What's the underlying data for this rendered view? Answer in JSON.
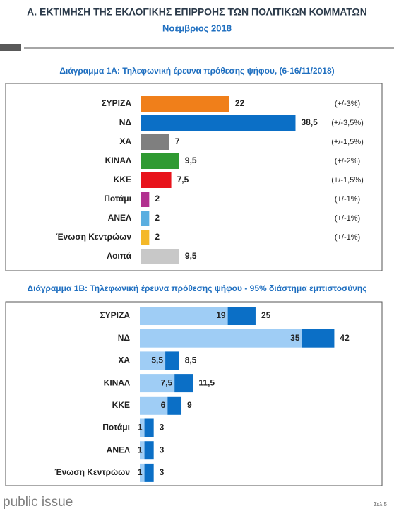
{
  "header": {
    "title": "Α. ΕΚΤΙΜΗΣΗ ΤΗΣ ΕΚΛΟΓΙΚΗΣ ΕΠΙΡΡΟΗΣ ΤΩΝ ΠΟΛΙΤΙΚΩΝ ΚΟΜΜΑΤΩΝ",
    "subtitle": "Νοέμβριος 2018"
  },
  "chart_data": [
    {
      "type": "bar",
      "title": "Διάγραμμα 1Α: Τηλεφωνική έρευνα πρόθεσης ψήφου,  (6-16/11/2018)",
      "categories": [
        "ΣΥΡΙΖΑ",
        "ΝΔ",
        "ΧΑ",
        "ΚΙΝΑΛ",
        "ΚΚΕ",
        "Ποτάμι",
        "ΑΝΕΛ",
        "Ένωση Κεντρώων",
        "Λοιπά"
      ],
      "values": [
        22,
        38.5,
        7,
        9.5,
        7.5,
        2,
        2,
        2,
        9.5
      ],
      "value_labels": [
        "22",
        "38,5",
        "7",
        "9,5",
        "7,5",
        "2",
        "2",
        "2",
        "9,5"
      ],
      "colors": [
        "#f07f1a",
        "#0b6fc6",
        "#7f7f7f",
        "#2f9a32",
        "#e8131b",
        "#b2318f",
        "#5aaee0",
        "#f4b828",
        "#c8c8c8"
      ],
      "margins": [
        "(+/-3%)",
        "(+/-3,5%)",
        "(+/-1,5%)",
        "(+/-2%)",
        "(+/-1,5%)",
        "(+/-1%)",
        "(+/-1%)",
        "(+/-1%)",
        null
      ],
      "xlim": [
        0,
        40
      ]
    },
    {
      "type": "range",
      "title": "Διάγραμμα 1Β: Τηλεφωνική έρευνα πρόθεσης ψήφου - 95% διάστημα εμπιστοσύνης",
      "categories": [
        "ΣΥΡΙΖΑ",
        "ΝΔ",
        "ΧΑ",
        "ΚΙΝΑΛ",
        "ΚΚΕ",
        "Ποτάμι",
        "ΑΝΕΛ",
        "Ένωση Κεντρώων"
      ],
      "series": [
        {
          "color": "#9fcdf5",
          "values": [
            19,
            35,
            5.5,
            7.5,
            6,
            1,
            1,
            1
          ],
          "value_labels": [
            "19",
            "35",
            "5,5",
            "7,5",
            "6",
            "1",
            "1",
            "1"
          ]
        },
        {
          "color": "#0b6fc6",
          "values": [
            25,
            42,
            8.5,
            11.5,
            9,
            3,
            3,
            3
          ],
          "value_labels": [
            "25",
            "42",
            "8,5",
            "11,5",
            "9",
            "3",
            "3",
            "3"
          ]
        }
      ],
      "xlim": [
        0,
        52
      ]
    }
  ],
  "footer": {
    "brand": "public issue",
    "page": "Σελ.5"
  }
}
